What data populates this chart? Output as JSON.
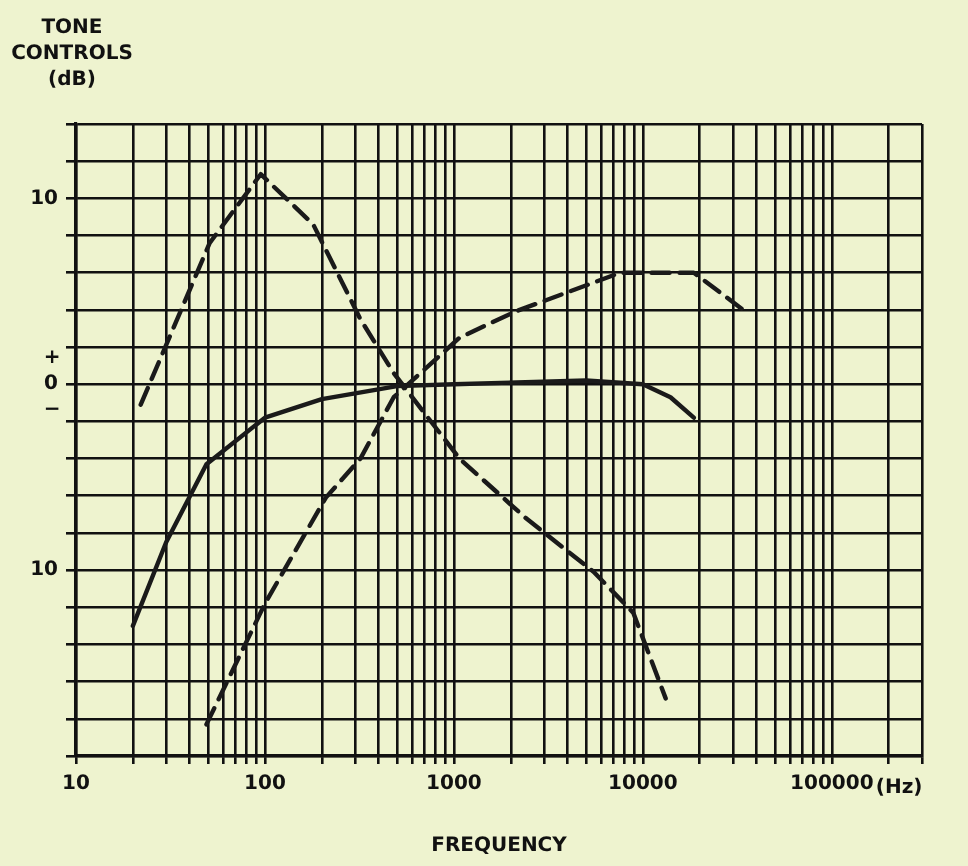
{
  "chart_data": {
    "type": "line",
    "ylabel": "TONE CONTROLS (dB)",
    "xlabel": "FREQUENCY",
    "annotations": [
      "+",
      "−",
      "(Hz)"
    ],
    "log": "x",
    "grid": true,
    "legend": false,
    "marker": "none",
    "xlim": [
      10,
      300000
    ],
    "ylim": [
      -20,
      14
    ],
    "xticks": [
      10,
      {
        "value": 20,
        "label": null
      },
      {
        "value": 30,
        "label": null
      },
      {
        "value": 40,
        "label": null
      },
      {
        "value": 50,
        "label": null
      },
      {
        "value": 60,
        "label": null
      },
      {
        "value": 70,
        "label": null
      },
      {
        "value": 80,
        "label": null
      },
      {
        "value": 90,
        "label": null
      },
      100,
      {
        "value": 200,
        "label": null
      },
      {
        "value": 300,
        "label": null
      },
      {
        "value": 400,
        "label": null
      },
      {
        "value": 500,
        "label": null
      },
      {
        "value": 600,
        "label": null
      },
      {
        "value": 700,
        "label": null
      },
      {
        "value": 800,
        "label": null
      },
      {
        "value": 900,
        "label": null
      },
      1000,
      {
        "value": 2000,
        "label": null
      },
      {
        "value": 3000,
        "label": null
      },
      {
        "value": 4000,
        "label": null
      },
      {
        "value": 5000,
        "label": null
      },
      {
        "value": 6000,
        "label": null
      },
      {
        "value": 7000,
        "label": null
      },
      {
        "value": 8000,
        "label": null
      },
      {
        "value": 9000,
        "label": null
      },
      10000,
      {
        "value": 20000,
        "label": null
      },
      {
        "value": 30000,
        "label": null
      },
      {
        "value": 40000,
        "label": null
      },
      {
        "value": 50000,
        "label": null
      },
      {
        "value": 60000,
        "label": null
      },
      {
        "value": 70000,
        "label": null
      },
      {
        "value": 80000,
        "label": null
      },
      {
        "value": 90000,
        "label": null
      },
      100000,
      {
        "value": 200000,
        "label": null
      },
      {
        "value": 300000,
        "label": null
      }
    ],
    "yticks": [
      {
        "value": -20,
        "label": null
      },
      {
        "value": -18,
        "label": null
      },
      {
        "value": -16,
        "label": null
      },
      {
        "value": -14,
        "label": null
      },
      {
        "value": -12,
        "label": null
      },
      {
        "value": -10,
        "label": "10"
      },
      {
        "value": -8,
        "label": null
      },
      {
        "value": -6,
        "label": null
      },
      {
        "value": -4,
        "label": null
      },
      {
        "value": -2,
        "label": null
      },
      0,
      {
        "value": 2,
        "label": null
      },
      {
        "value": 4,
        "label": null
      },
      {
        "value": 6,
        "label": null
      },
      {
        "value": 8,
        "label": null
      },
      10,
      {
        "value": 12,
        "label": null
      },
      {
        "value": 14,
        "label": null
      }
    ],
    "series": [
      {
        "color": "#1a1a1a",
        "line_style": "dashed",
        "x": [
          22,
          51,
          95,
          180,
          320,
          480,
          1070,
          2400,
          5500,
          8900,
          13200
        ],
        "values": [
          -1.1,
          7.6,
          11.3,
          8.6,
          3.5,
          0.6,
          -4,
          -7.2,
          -10.1,
          -12.3,
          -16.9
        ]
      },
      {
        "color": "#1a1a1a",
        "line_style": "solid",
        "x": [
          20,
          30,
          49,
          100,
          200,
          500,
          1000,
          5000,
          10000,
          14000,
          18600
        ],
        "values": [
          -13,
          -8.5,
          -4.3,
          -1.8,
          -0.8,
          -0.1,
          0,
          0.2,
          0,
          -0.7,
          -1.8
        ]
      },
      {
        "color": "#1a1a1a",
        "line_style": "dashed",
        "x": [
          49,
          100,
          210,
          320,
          480,
          1070,
          2100,
          7600,
          18600,
          35000
        ],
        "values": [
          -18.3,
          -11.8,
          -6.1,
          -4,
          -0.7,
          2.5,
          3.9,
          6,
          6,
          3.9
        ]
      }
    ]
  }
}
